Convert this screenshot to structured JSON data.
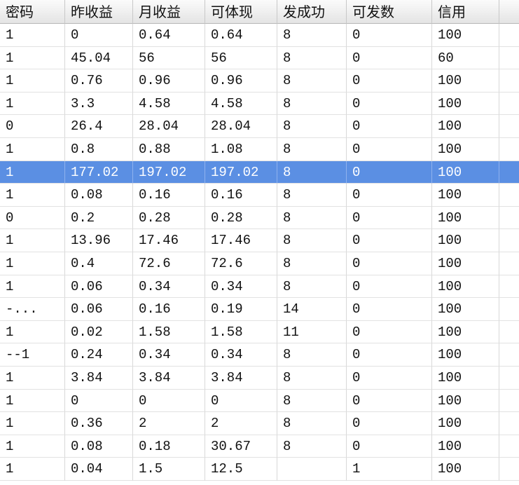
{
  "table": {
    "header": [
      "密码",
      "昨收益",
      "月收益",
      "可体现",
      "发成功",
      "可发数",
      "信用"
    ],
    "rows": [
      [
        "1",
        "0",
        "0.64",
        "0.64",
        "8",
        "0",
        "100"
      ],
      [
        "1",
        "45.04",
        "56",
        "56",
        "8",
        "0",
        "60"
      ],
      [
        "1",
        "0.76",
        "0.96",
        "0.96",
        "8",
        "0",
        "100"
      ],
      [
        "1",
        "3.3",
        "4.58",
        "4.58",
        "8",
        "0",
        "100"
      ],
      [
        "0",
        "26.4",
        "28.04",
        "28.04",
        "8",
        "0",
        "100"
      ],
      [
        "1",
        "0.8",
        "0.88",
        "1.08",
        "8",
        "0",
        "100"
      ],
      [
        "1",
        "177.02",
        "197.02",
        "197.02",
        "8",
        "0",
        "100"
      ],
      [
        "1",
        "0.08",
        "0.16",
        "0.16",
        "8",
        "0",
        "100"
      ],
      [
        "0",
        "0.2",
        "0.28",
        "0.28",
        "8",
        "0",
        "100"
      ],
      [
        "1",
        "13.96",
        "17.46",
        "17.46",
        "8",
        "0",
        "100"
      ],
      [
        "1",
        "0.4",
        "72.6",
        "72.6",
        "8",
        "0",
        "100"
      ],
      [
        "1",
        "0.06",
        "0.34",
        "0.34",
        "8",
        "0",
        "100"
      ],
      [
        "-...",
        "0.06",
        "0.16",
        "0.19",
        "14",
        "0",
        "100"
      ],
      [
        "1",
        "0.02",
        "1.58",
        "1.58",
        "11",
        "0",
        "100"
      ],
      [
        "--1",
        "0.24",
        "0.34",
        "0.34",
        "8",
        "0",
        "100"
      ],
      [
        "1",
        "3.84",
        "3.84",
        "3.84",
        "8",
        "0",
        "100"
      ],
      [
        "1",
        "0",
        "0",
        "0",
        "8",
        "0",
        "100"
      ],
      [
        "1",
        "0.36",
        "2",
        "2",
        "8",
        "0",
        "100"
      ],
      [
        "1",
        "0.08",
        "0.18",
        "30.67",
        "8",
        "0",
        "100"
      ],
      [
        "1",
        "0.04",
        "1.5",
        "12.5",
        null,
        "1",
        "100"
      ]
    ],
    "selected_row": 6
  }
}
